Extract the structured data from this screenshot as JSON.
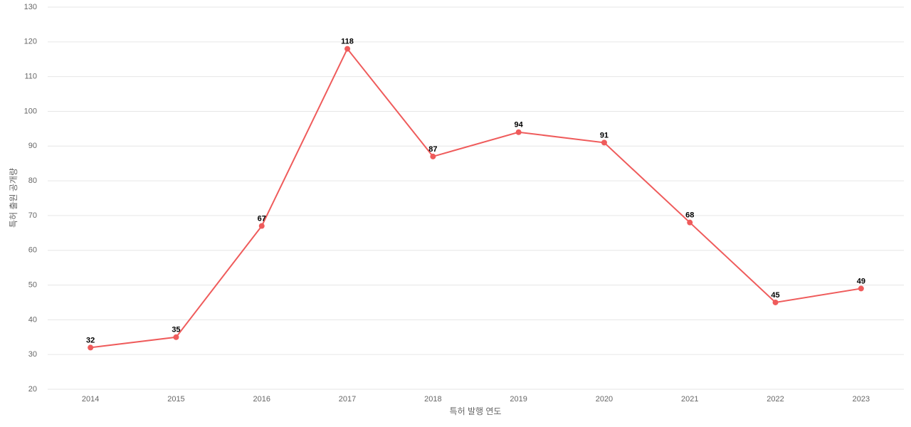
{
  "chart_data": {
    "type": "line",
    "x_label": "특허 발행 연도",
    "y_label": "특허 출원 공개량",
    "categories": [
      "2014",
      "2015",
      "2016",
      "2017",
      "2018",
      "2019",
      "2020",
      "2021",
      "2022",
      "2023"
    ],
    "values": [
      32,
      35,
      67,
      118,
      87,
      94,
      91,
      68,
      45,
      49
    ],
    "color": "#ef5b5b",
    "ylim": [
      20,
      130
    ],
    "yticks": [
      20,
      30,
      40,
      50,
      60,
      70,
      80,
      90,
      100,
      110,
      120,
      130
    ],
    "grid": true
  }
}
